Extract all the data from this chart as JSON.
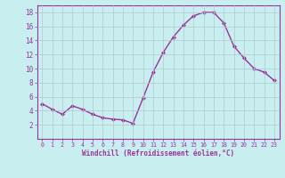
{
  "x": [
    0,
    1,
    2,
    3,
    4,
    5,
    6,
    7,
    8,
    9,
    10,
    11,
    12,
    13,
    14,
    15,
    16,
    17,
    18,
    19,
    20,
    21,
    22,
    23
  ],
  "y": [
    5.0,
    4.2,
    3.5,
    4.7,
    4.2,
    3.5,
    3.0,
    2.8,
    2.7,
    2.2,
    5.8,
    9.5,
    12.3,
    14.5,
    16.2,
    17.5,
    18.0,
    18.0,
    16.5,
    13.2,
    11.5,
    10.0,
    9.5,
    8.3
  ],
  "line_color": "#993399",
  "marker": "D",
  "marker_size": 2,
  "bg_color": "#c8eef0",
  "grid_color": "#b0c8cc",
  "xlabel": "Windchill (Refroidissement éolien,°C)",
  "xlabel_color": "#993399",
  "tick_color": "#993399",
  "ylim": [
    0,
    19
  ],
  "xlim": [
    -0.5,
    23.5
  ],
  "yticks": [
    2,
    4,
    6,
    8,
    10,
    12,
    14,
    16,
    18
  ],
  "xticks": [
    0,
    1,
    2,
    3,
    4,
    5,
    6,
    7,
    8,
    9,
    10,
    11,
    12,
    13,
    14,
    15,
    16,
    17,
    18,
    19,
    20,
    21,
    22,
    23
  ]
}
